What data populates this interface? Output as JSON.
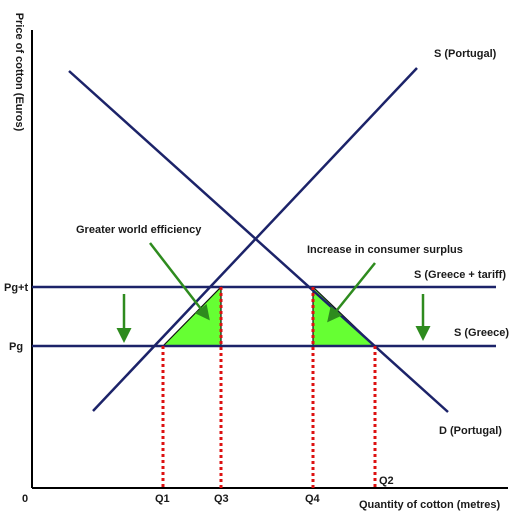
{
  "axes": {
    "y_label": "Price of cotton (Euros)",
    "x_label": "Quantity of cotton (metres)",
    "origin": "0"
  },
  "price_labels": {
    "pg_tariff": "Pg+t",
    "pg": "Pg"
  },
  "quantity_labels": {
    "q1": "Q1",
    "q3": "Q3",
    "q4": "Q4",
    "q2": "Q2"
  },
  "curve_labels": {
    "supply_portugal": "S (Portugal)",
    "supply_greece_tariff": "S (Greece + tariff)",
    "supply_greece": "S (Greece)",
    "demand_portugal": "D (Portugal)"
  },
  "annotations": {
    "world_efficiency": "Greater world efficiency",
    "consumer_surplus": "Increase in consumer surplus"
  },
  "colors": {
    "curve": "#1c2369",
    "axis": "#000000",
    "guide": "#dd1111",
    "triangle_fill": "#66ff33",
    "arrow": "#2e8b1e"
  }
}
